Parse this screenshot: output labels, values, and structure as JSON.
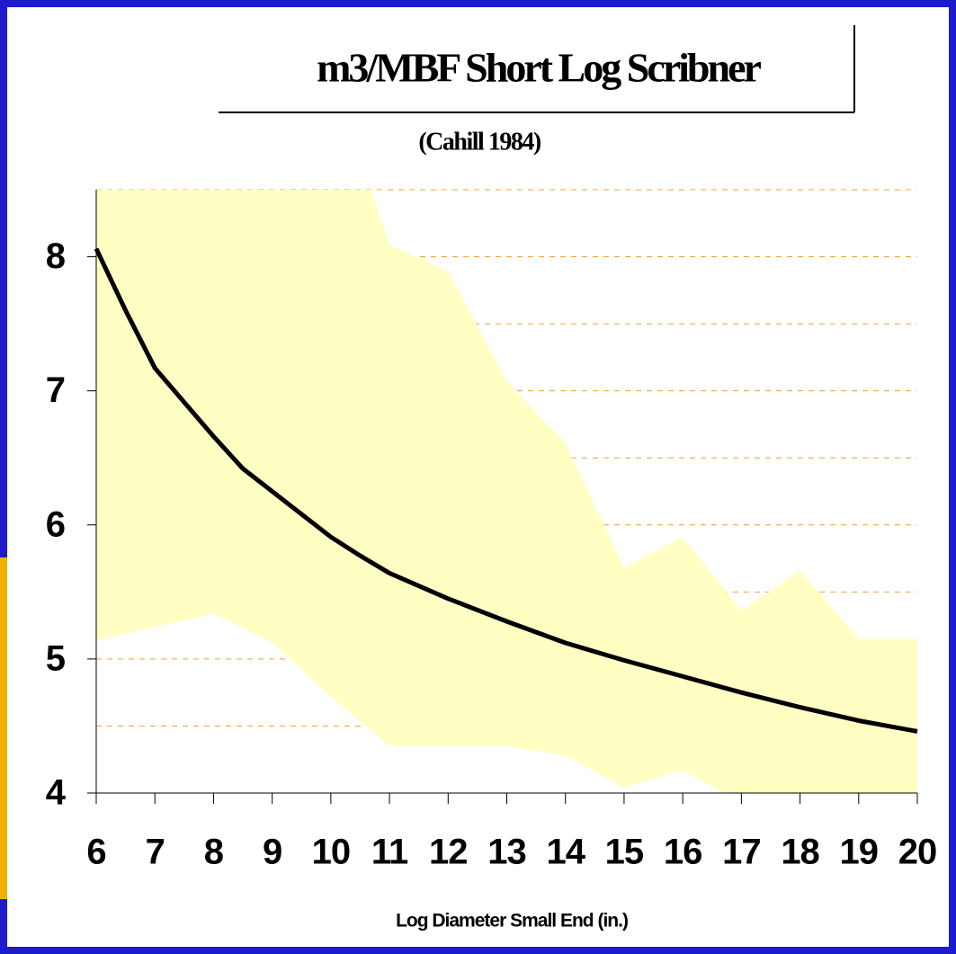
{
  "chart_data": {
    "type": "line",
    "title": "m3/MBF Short Log Scribner",
    "subtitle": "(Cahill 1984)",
    "x_label": "Log Diameter Small End (in.)",
    "xlim": [
      6,
      20
    ],
    "xticks": [
      6,
      7,
      8,
      9,
      10,
      11,
      12,
      13,
      14,
      15,
      16,
      17,
      18,
      19,
      20
    ],
    "ylim": [
      4,
      8.5
    ],
    "yticks": [
      4,
      5,
      6,
      7,
      8
    ],
    "minor_grid": [
      4.5,
      5,
      5.5,
      6,
      6.5,
      7,
      7.5,
      8,
      8.5
    ],
    "grid": true,
    "grid_color": "#f0a030",
    "line": {
      "color": "#000000",
      "x": [
        6,
        6.5,
        7,
        8,
        8.5,
        9,
        10,
        10.5,
        11,
        12,
        13,
        14,
        15,
        16,
        17,
        18,
        19,
        20
      ],
      "y": [
        8.06,
        7.6,
        7.17,
        6.66,
        6.42,
        6.25,
        5.91,
        5.77,
        5.64,
        5.45,
        5.28,
        5.12,
        4.99,
        4.87,
        4.75,
        4.64,
        4.54,
        4.46
      ]
    },
    "band_upper": {
      "color": "#ffffc4",
      "x": [
        6,
        10.68,
        11,
        12,
        13,
        14,
        15,
        16,
        17,
        18,
        19,
        20
      ],
      "y": [
        8.5,
        8.5,
        8.09,
        7.89,
        7.07,
        6.61,
        5.68,
        5.91,
        5.36,
        5.66,
        5.15,
        5.15
      ]
    },
    "band_lower": {
      "x": [
        6,
        8,
        9,
        10,
        11,
        12,
        13,
        14,
        15,
        16,
        16.7,
        20
      ],
      "y": [
        5.14,
        5.34,
        5.12,
        4.72,
        4.35,
        4.35,
        4.35,
        4.28,
        4.04,
        4.17,
        4.0,
        4.0
      ]
    }
  }
}
